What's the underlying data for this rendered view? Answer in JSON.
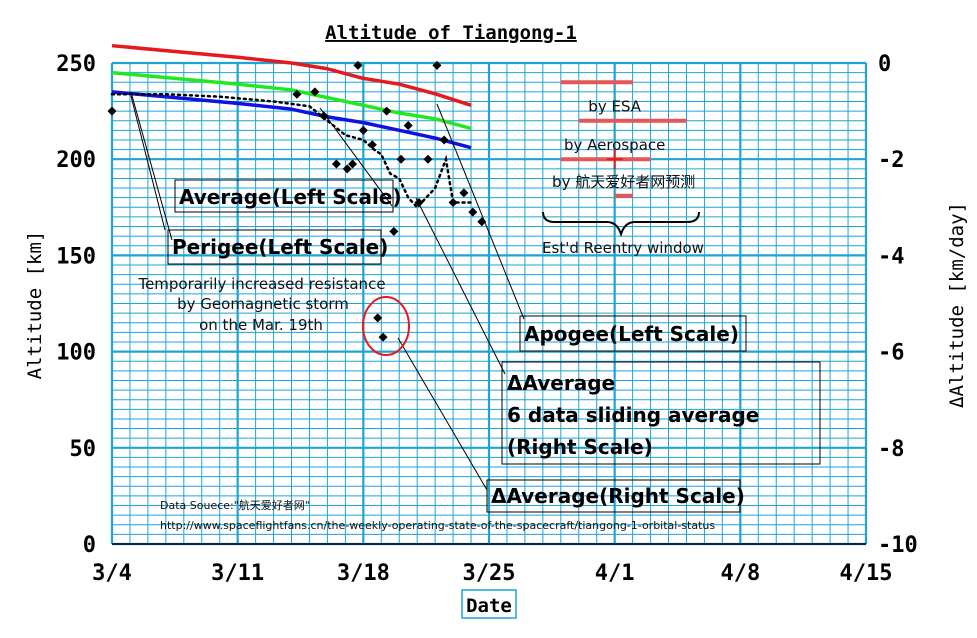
{
  "chart_data": {
    "type": "line",
    "title": "Altitude of Tiangong-1",
    "xlabel": "Date",
    "ylabel_left": "Altitude [km]",
    "ylabel_right": "ΔAltitude [km/day]",
    "xlim_days_from_0304": [
      0,
      42
    ],
    "x_ticks": [
      "3/4",
      "3/11",
      "3/18",
      "3/25",
      "4/1",
      "4/8",
      "4/15"
    ],
    "ylim_left": [
      0,
      250
    ],
    "y_ticks_left": [
      "0",
      "50",
      "100",
      "150",
      "200",
      "250"
    ],
    "ylim_right": [
      -10,
      0
    ],
    "y_ticks_right": [
      "-10",
      "-8",
      "-6",
      "-4",
      "-2",
      "0"
    ],
    "grid": true,
    "colors": {
      "grid": "#1fa3d6",
      "apogee": "#e41a1c",
      "average": "#22e81f",
      "perigee": "#1010e0",
      "delta": "#000000",
      "reentry": "#e45757",
      "circle": "#e41a1c"
    },
    "series": [
      {
        "name": "Apogee(Left Scale)",
        "axis": "left",
        "style": "line",
        "x": [
          "3/4",
          "3/11",
          "3/14",
          "3/16",
          "3/18",
          "3/20",
          "3/22",
          "3/24"
        ],
        "y": [
          259,
          253,
          250,
          247,
          242,
          239,
          234,
          228
        ]
      },
      {
        "name": "Average(Left Scale)",
        "axis": "left",
        "style": "line",
        "x": [
          "3/4",
          "3/11",
          "3/14",
          "3/16",
          "3/18",
          "3/20",
          "3/22",
          "3/24"
        ],
        "y": [
          245,
          239,
          236,
          232,
          228,
          224,
          221,
          216
        ]
      },
      {
        "name": "Perigee(Left Scale)",
        "axis": "left",
        "style": "line",
        "x": [
          "3/4",
          "3/11",
          "3/14",
          "3/16",
          "3/18",
          "3/20",
          "3/22",
          "3/24"
        ],
        "y": [
          235,
          229,
          226,
          222,
          219,
          215,
          211,
          206
        ]
      },
      {
        "name": "ΔAverage 6 data sliding average (Right Scale)",
        "axis": "right",
        "style": "dotted",
        "x": [
          "3/4",
          "3/7",
          "3/10",
          "3/13",
          "3/15",
          "3/16",
          "3/17",
          "3/18",
          "3/18.6",
          "3/19",
          "3/19.5",
          "3/20",
          "3/20.5",
          "3/21",
          "3/22",
          "3/22.6",
          "3/23",
          "3/24"
        ],
        "y": [
          -0.65,
          -0.65,
          -0.7,
          -0.8,
          -0.9,
          -1.2,
          -1.5,
          -1.6,
          -1.8,
          -1.9,
          -2.3,
          -2.4,
          -2.8,
          -3.0,
          -2.6,
          -2.0,
          -2.9,
          -2.9
        ]
      },
      {
        "name": "ΔAverage(Right Scale)",
        "axis": "right",
        "style": "markers",
        "x": [
          "3/4",
          "3/14.3",
          "3/15.3",
          "3/15.8",
          "3/16.5",
          "3/17.1",
          "3/17.4",
          "3/17.7",
          "3/18",
          "3/18.5",
          "3/18.8",
          "3/19.1",
          "3/19.3",
          "3/19.7",
          "3/20.1",
          "3/20.5",
          "3/21.1",
          "3/21.6",
          "3/22.1",
          "3/22.5",
          "3/23",
          "3/23.6",
          "3/24.1",
          "3/24.6"
        ],
        "y": [
          -1.0,
          -0.65,
          -0.6,
          -1.1,
          -2.1,
          -2.2,
          -2.1,
          -0.05,
          -1.4,
          -1.7,
          -5.3,
          -5.7,
          -1.0,
          -3.5,
          -2.0,
          -1.3,
          -2.9,
          -2.0,
          -0.05,
          -1.6,
          -2.9,
          -2.7,
          -3.1,
          -3.3
        ]
      }
    ],
    "reentry_windows": [
      {
        "name": "",
        "start": "3/29",
        "end": "4/2",
        "center": "3/31.5",
        "level_km": 240
      },
      {
        "name": "by ESA",
        "start": "3/30",
        "end": "4/5",
        "center": "4/1",
        "level_km": 220
      },
      {
        "name": "by Aerospace",
        "start": "3/29",
        "end": "4/3",
        "center": "4/1",
        "level_km": 200
      },
      {
        "name": "by 航天爱好者网预测",
        "start": "4/1",
        "end": "4/2",
        "center": "4/1.5",
        "level_km": 181
      }
    ]
  },
  "labels": {
    "average": "Average(Left Scale)",
    "perigee": "Perigee(Left Scale)",
    "apogee": "Apogee(Left Scale)",
    "delta_sliding_1": "ΔAverage",
    "delta_sliding_2": "6 data sliding average",
    "delta_sliding_3": "(Right Scale)",
    "delta_points": "ΔAverage(Right Scale)",
    "storm_1": "Temporarily increased resistance",
    "storm_2": "by Geomagnetic storm",
    "storm_3": "on the Mar. 19th",
    "reentry_window": "Est'd Reentry window",
    "source_1": "Data Souece:\"航天爱好者网\"",
    "source_2": "http://www.spaceflightfans.cn/the-weekly-operating-state-of-the-spacecraft/tiangong-1-orbital-status"
  }
}
